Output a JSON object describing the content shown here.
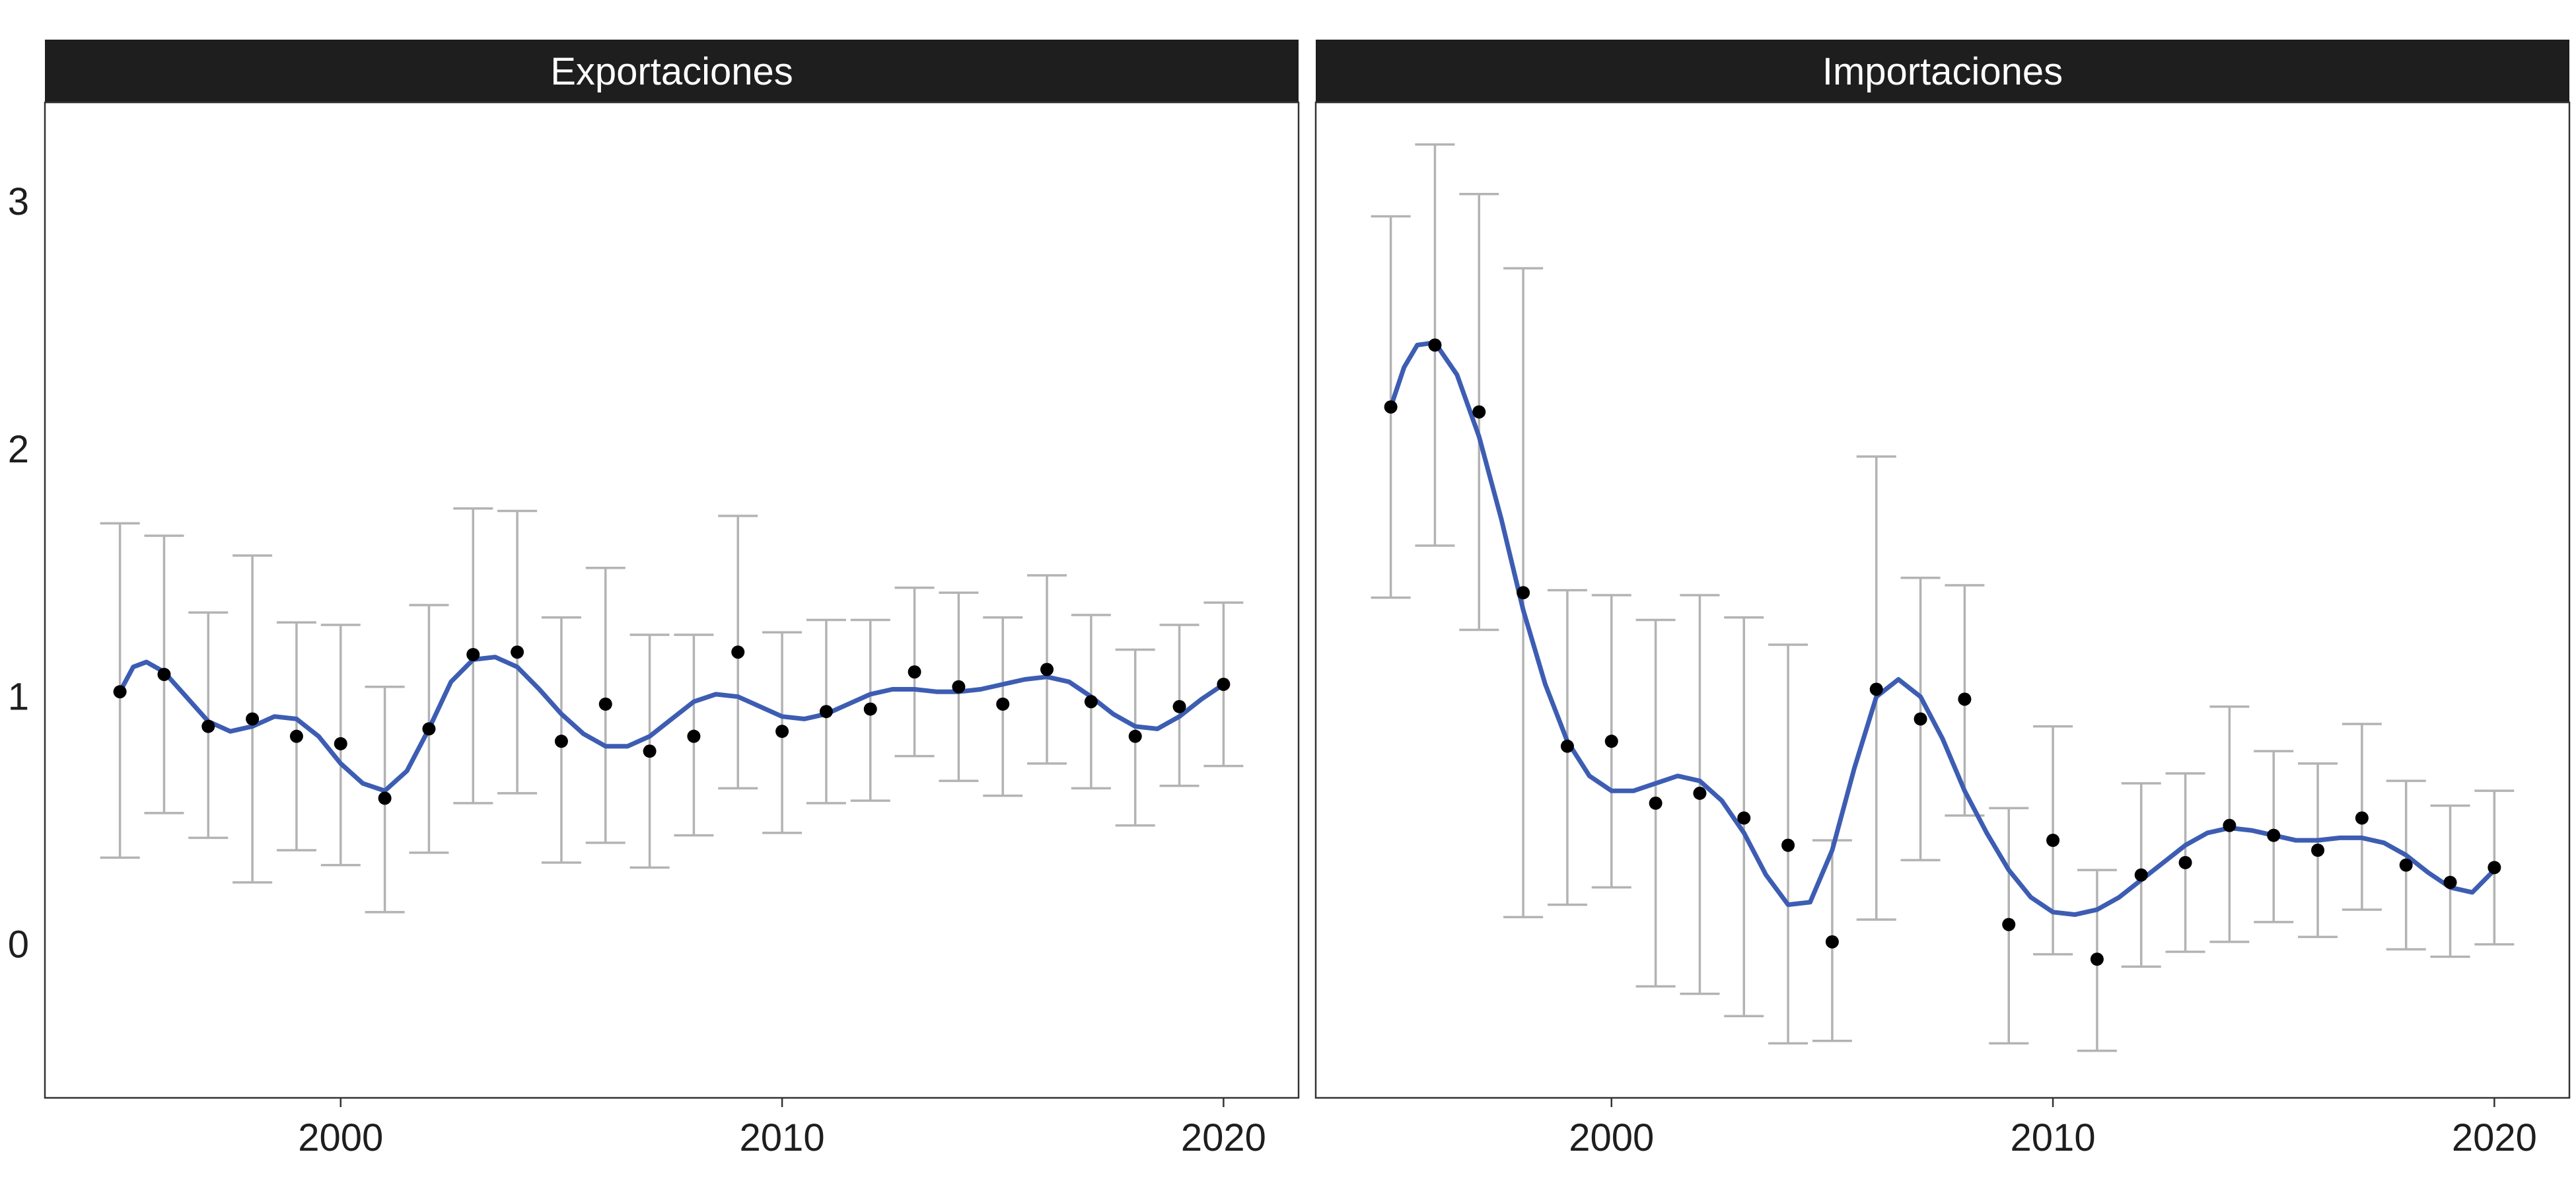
{
  "chart_data": {
    "type": "scatter",
    "x_ticks": [
      2000,
      2010,
      2020
    ],
    "y_ticks": [
      0,
      1,
      2,
      3
    ],
    "xlim": [
      1993.3,
      2021.7
    ],
    "ylim": [
      -0.62,
      3.4
    ],
    "grid": false,
    "colors": {
      "points": "#000000",
      "errorbars": "#b3b3b3",
      "smooth": "#3d5db3",
      "strip": "#1e1e1e",
      "panel_border": "#333333"
    },
    "panels": [
      {
        "title": "Exportaciones",
        "x": [
          1995,
          1996,
          1997,
          1998,
          1999,
          2000,
          2001,
          2002,
          2003,
          2004,
          2005,
          2006,
          2007,
          2008,
          2009,
          2010,
          2011,
          2012,
          2013,
          2014,
          2015,
          2016,
          2017,
          2018,
          2019,
          2020
        ],
        "y": [
          1.02,
          1.09,
          0.88,
          0.91,
          0.84,
          0.81,
          0.59,
          0.87,
          1.17,
          1.18,
          0.82,
          0.97,
          0.78,
          0.84,
          1.18,
          0.86,
          0.94,
          0.95,
          1.1,
          1.04,
          0.97,
          1.11,
          0.98,
          0.84,
          0.96,
          1.05
        ],
        "lower": [
          0.35,
          0.53,
          0.43,
          0.25,
          0.38,
          0.32,
          0.13,
          0.37,
          0.57,
          0.61,
          0.33,
          0.41,
          0.31,
          0.44,
          0.63,
          0.45,
          0.57,
          0.58,
          0.76,
          0.66,
          0.6,
          0.73,
          0.63,
          0.48,
          0.64,
          0.72
        ],
        "upper": [
          1.7,
          1.65,
          1.34,
          1.57,
          1.3,
          1.29,
          1.04,
          1.37,
          1.76,
          1.75,
          1.32,
          1.52,
          1.25,
          1.25,
          1.73,
          1.26,
          1.31,
          1.31,
          1.44,
          1.42,
          1.32,
          1.49,
          1.33,
          1.19,
          1.29,
          1.38
        ],
        "smooth_x": [
          1995,
          1995.3,
          1995.6,
          1996,
          1996.5,
          1997,
          1997.5,
          1998,
          1998.5,
          1999,
          1999.5,
          2000,
          2000.5,
          2001,
          2001.5,
          2002,
          2002.5,
          2003,
          2003.5,
          2004,
          2004.5,
          2005,
          2005.5,
          2006,
          2006.5,
          2007,
          2007.5,
          2008,
          2008.5,
          2009,
          2009.5,
          2010,
          2010.5,
          2011,
          2011.5,
          2012,
          2012.5,
          2013,
          2013.5,
          2014,
          2014.5,
          2015,
          2015.5,
          2016,
          2016.5,
          2017,
          2017.5,
          2018,
          2018.5,
          2019,
          2019.5,
          2020
        ],
        "smooth_y": [
          1.02,
          1.12,
          1.14,
          1.1,
          1.0,
          0.9,
          0.86,
          0.88,
          0.92,
          0.91,
          0.84,
          0.73,
          0.65,
          0.62,
          0.7,
          0.87,
          1.06,
          1.15,
          1.16,
          1.12,
          1.03,
          0.93,
          0.85,
          0.8,
          0.8,
          0.84,
          0.91,
          0.98,
          1.01,
          1.0,
          0.96,
          0.92,
          0.91,
          0.93,
          0.97,
          1.01,
          1.03,
          1.03,
          1.02,
          1.02,
          1.03,
          1.05,
          1.07,
          1.08,
          1.06,
          1.0,
          0.93,
          0.88,
          0.87,
          0.92,
          0.99,
          1.05
        ]
      },
      {
        "title": "Importaciones",
        "x": [
          1995,
          1996,
          1997,
          1998,
          1999,
          2000,
          2001,
          2002,
          2003,
          2004,
          2005,
          2006,
          2007,
          2008,
          2009,
          2010,
          2011,
          2012,
          2013,
          2014,
          2015,
          2016,
          2017,
          2018,
          2019,
          2020
        ],
        "y": [
          2.17,
          2.42,
          2.15,
          1.42,
          0.8,
          0.82,
          0.57,
          0.61,
          0.51,
          0.4,
          0.01,
          1.03,
          0.91,
          0.99,
          0.08,
          0.42,
          -0.06,
          0.28,
          0.33,
          0.48,
          0.44,
          0.38,
          0.51,
          0.32,
          0.25,
          0.31
        ],
        "lower": [
          1.4,
          1.61,
          1.27,
          0.11,
          0.16,
          0.23,
          -0.17,
          -0.2,
          -0.29,
          -0.4,
          -0.39,
          0.1,
          0.34,
          0.52,
          -0.4,
          -0.04,
          -0.43,
          -0.09,
          -0.03,
          0.01,
          0.09,
          0.03,
          0.14,
          -0.02,
          -0.05,
          0.0
        ],
        "upper": [
          2.94,
          3.23,
          3.03,
          2.73,
          1.43,
          1.41,
          1.31,
          1.41,
          1.32,
          1.21,
          0.42,
          1.97,
          1.48,
          1.45,
          0.55,
          0.88,
          0.3,
          0.65,
          0.69,
          0.96,
          0.78,
          0.73,
          0.89,
          0.66,
          0.56,
          0.62
        ],
        "smooth_x": [
          1995,
          1995.3,
          1995.6,
          1996,
          1996.5,
          1997,
          1997.5,
          1998,
          1998.5,
          1999,
          1999.5,
          2000,
          2000.5,
          2001,
          2001.5,
          2002,
          2002.5,
          2003,
          2003.5,
          2004,
          2004.5,
          2005,
          2005.5,
          2006,
          2006.5,
          2007,
          2007.5,
          2008,
          2008.5,
          2009,
          2009.5,
          2010,
          2010.5,
          2011,
          2011.5,
          2012,
          2012.5,
          2013,
          2013.5,
          2014,
          2014.5,
          2015,
          2015.5,
          2016,
          2016.5,
          2017,
          2017.5,
          2018,
          2018.5,
          2019,
          2019.5,
          2020
        ],
        "smooth_y": [
          2.17,
          2.33,
          2.42,
          2.43,
          2.3,
          2.05,
          1.72,
          1.35,
          1.05,
          0.82,
          0.68,
          0.62,
          0.62,
          0.65,
          0.68,
          0.66,
          0.58,
          0.45,
          0.28,
          0.16,
          0.17,
          0.38,
          0.71,
          1.0,
          1.07,
          1.0,
          0.83,
          0.62,
          0.45,
          0.3,
          0.19,
          0.13,
          0.12,
          0.14,
          0.19,
          0.26,
          0.33,
          0.4,
          0.45,
          0.47,
          0.46,
          0.44,
          0.42,
          0.42,
          0.43,
          0.43,
          0.41,
          0.36,
          0.29,
          0.23,
          0.21,
          0.3
        ]
      }
    ]
  }
}
